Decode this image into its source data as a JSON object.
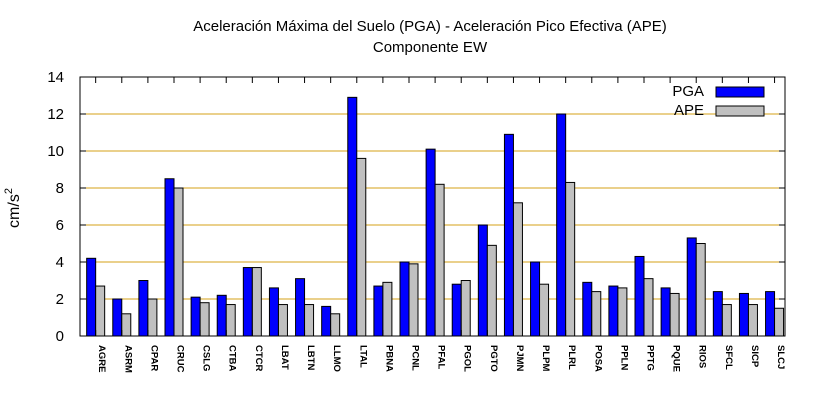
{
  "chart_data": {
    "type": "bar",
    "title": "Aceleración Máxima del Suelo (PGA) -  Aceleración Pico Efectiva (APE)",
    "subtitle": "Componente EW",
    "xlabel": "",
    "ylabel": "cm/s",
    "ylabel_superscript": "2",
    "ylim": [
      0,
      14
    ],
    "yticks": [
      0,
      2,
      4,
      6,
      8,
      10,
      12,
      14
    ],
    "grid": "horizontal",
    "legend_position": "top-right",
    "categories": [
      "AGRE",
      "ASRM",
      "CPAR",
      "CRUC",
      "CSLG",
      "CTBA",
      "CTCR",
      "LBAT",
      "LBTN",
      "LLMO",
      "LTAL",
      "PBNA",
      "PCNL",
      "PFAL",
      "PGOL",
      "PGTO",
      "PJMN",
      "PLPM",
      "PLRL",
      "POSA",
      "PPLN",
      "PPTG",
      "PQUE",
      "RIOS",
      "SFCL",
      "SICP",
      "SLCJ"
    ],
    "series": [
      {
        "name": "PGA",
        "color": "#0000ff",
        "values": [
          4.2,
          2.0,
          3.0,
          8.5,
          2.1,
          2.2,
          3.7,
          2.6,
          3.1,
          1.6,
          12.9,
          2.7,
          4.0,
          10.1,
          2.8,
          6.0,
          10.9,
          4.0,
          12.0,
          2.9,
          2.7,
          4.3,
          2.6,
          5.3,
          2.4,
          2.3,
          2.4
        ]
      },
      {
        "name": "APE",
        "color": "#c0c0c0",
        "values": [
          2.7,
          1.2,
          2.0,
          8.0,
          1.8,
          1.7,
          3.7,
          1.7,
          1.7,
          1.2,
          9.6,
          2.9,
          3.9,
          8.2,
          3.0,
          4.9,
          7.2,
          2.8,
          8.3,
          2.4,
          2.6,
          3.1,
          2.3,
          5.0,
          1.7,
          1.7,
          1.5
        ]
      }
    ],
    "colors": {
      "grid": "#d4a017",
      "axis": "#000000",
      "bar_stroke": "#000000"
    }
  }
}
